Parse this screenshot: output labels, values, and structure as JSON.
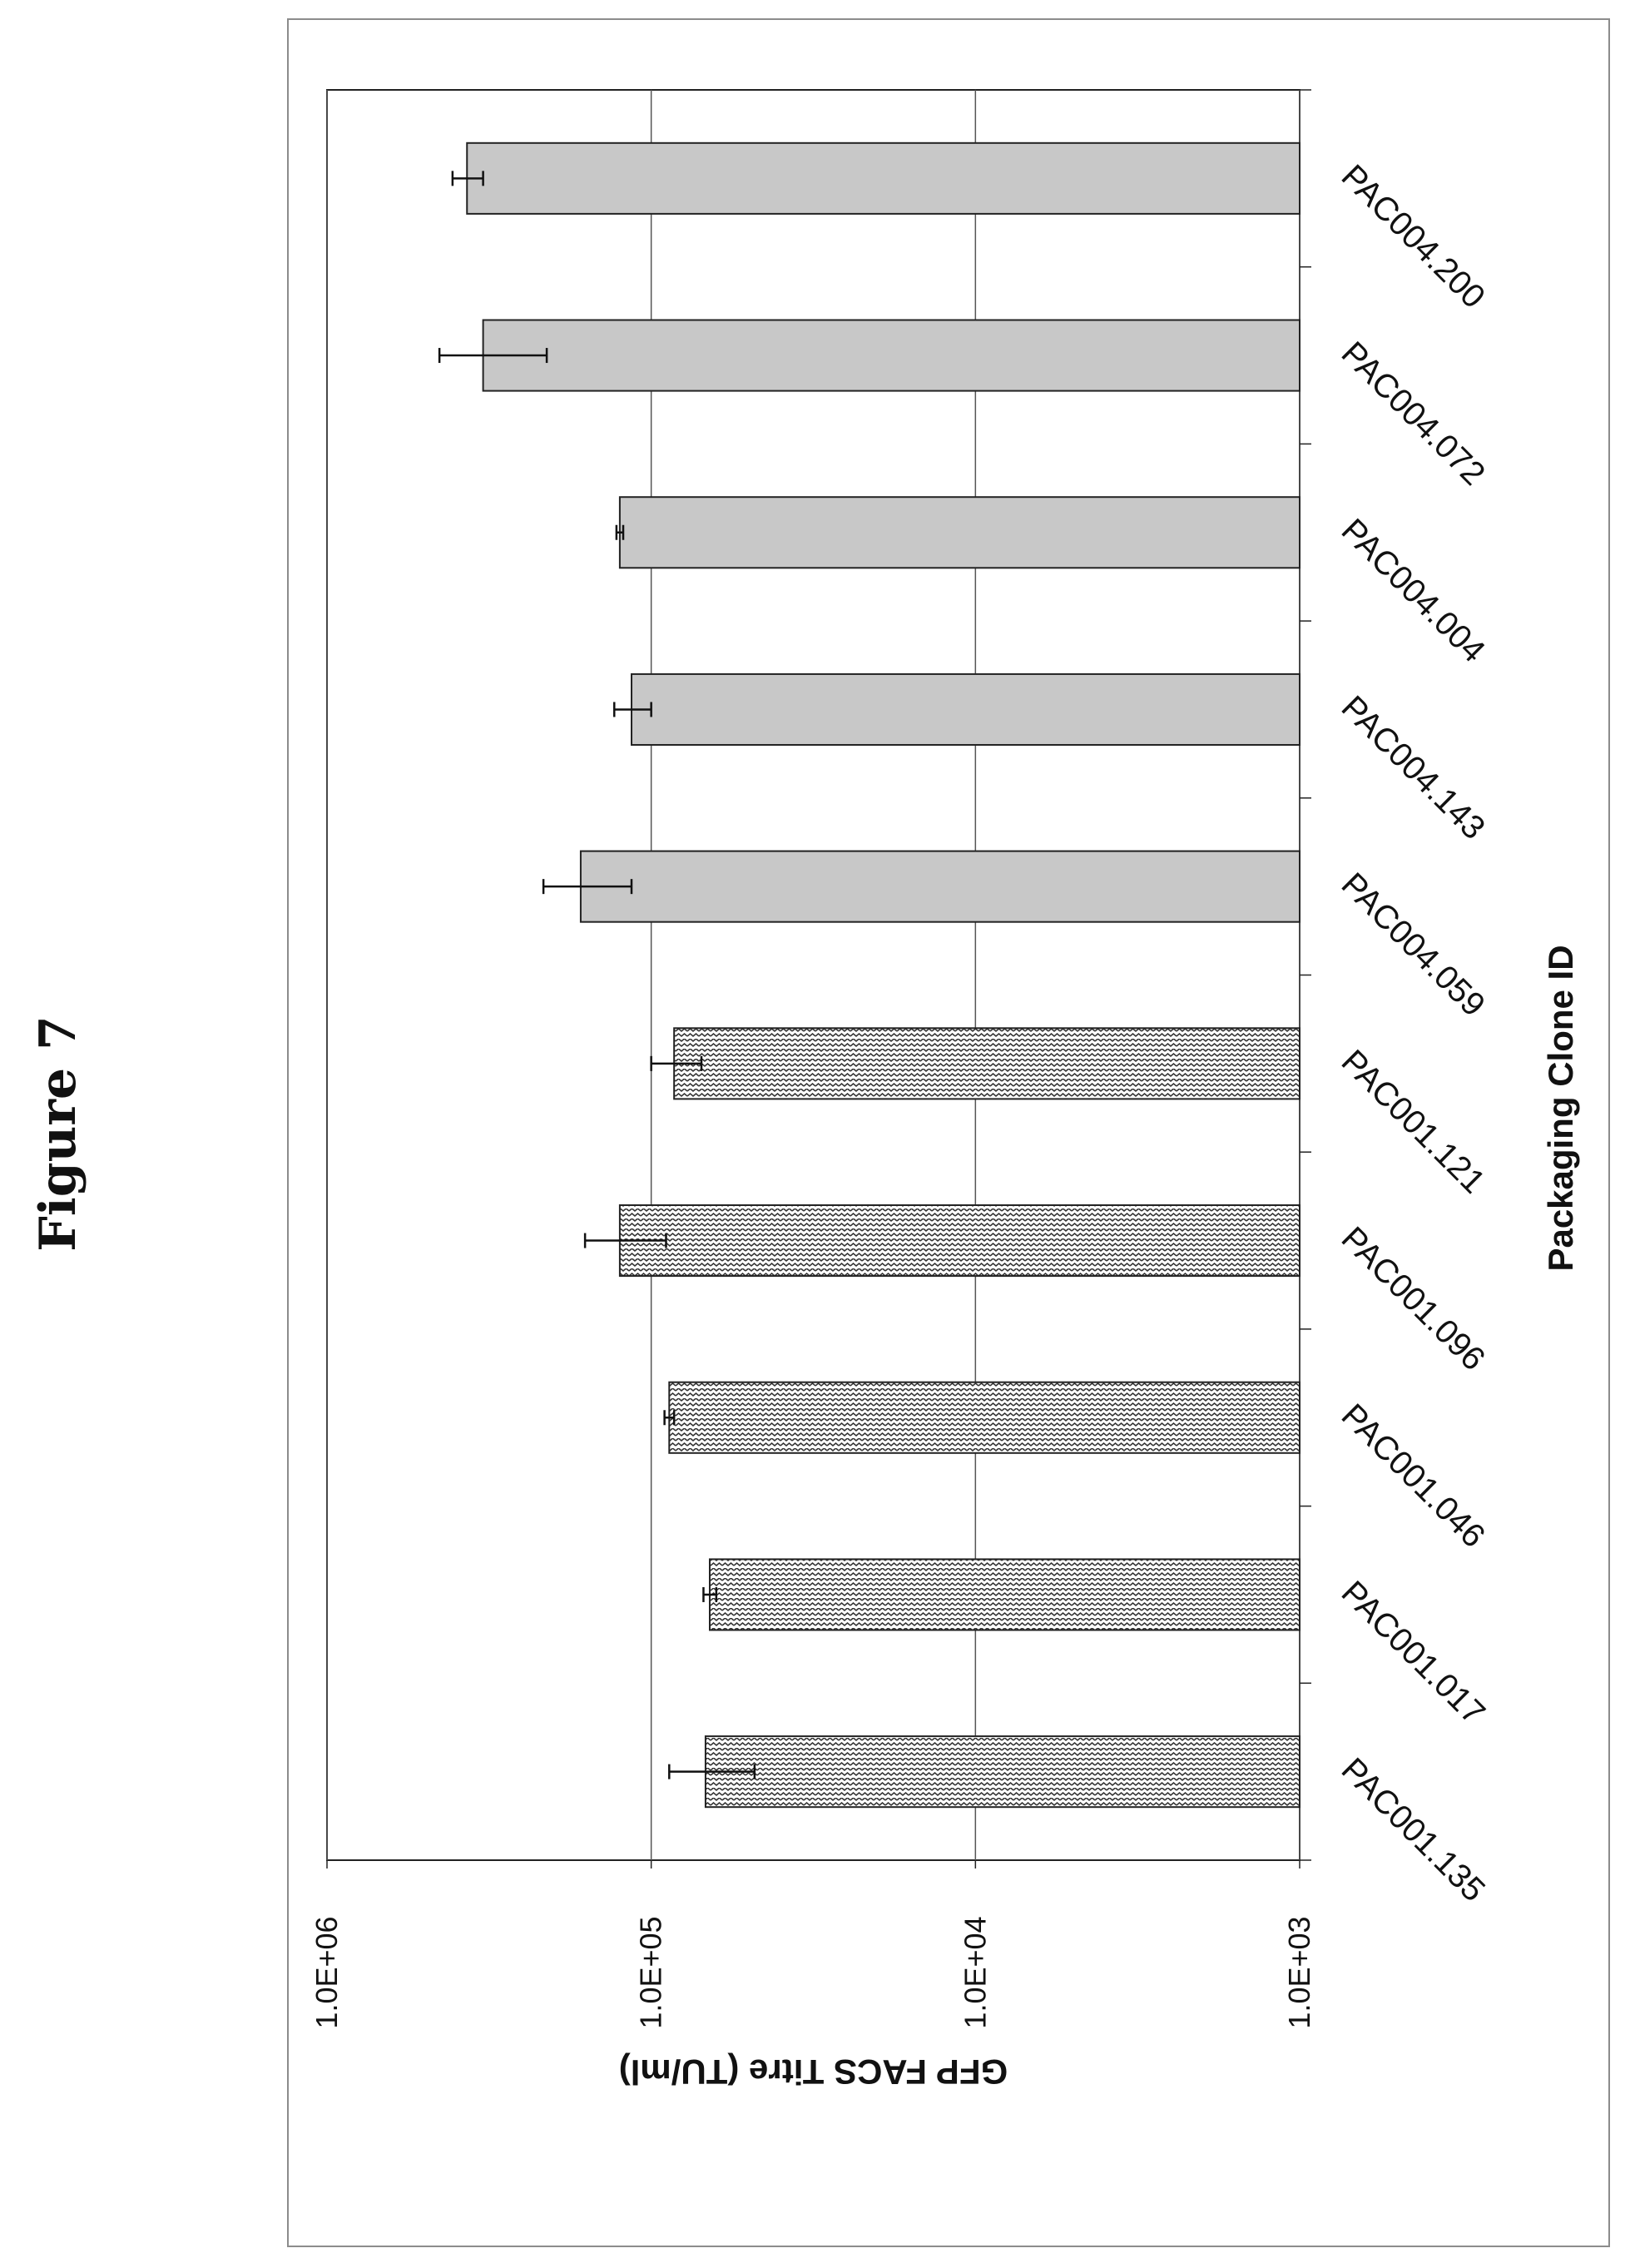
{
  "figure": {
    "title": "Figure 7"
  },
  "chart_data": {
    "type": "bar",
    "orientation": "horizontal",
    "xlabel": "Packaging Clone ID",
    "ylabel": "GFP FACS Titre (TU/ml)",
    "yscale": "log",
    "ylim": [
      1000,
      1000000
    ],
    "yticks": [
      1000,
      10000,
      100000,
      1000000
    ],
    "ytick_labels": [
      "1.0E+03",
      "1.0E+04",
      "1.0E+05",
      "1.0E+06"
    ],
    "grid": true,
    "categories": [
      "PAC001.135",
      "PAC001.017",
      "PAC001.046",
      "PAC001.096",
      "PAC001.121",
      "PAC004.059",
      "PAC004.143",
      "PAC004.004",
      "PAC004.072",
      "PAC004.200"
    ],
    "values": [
      68000,
      66000,
      88000,
      125000,
      85000,
      165000,
      115000,
      125000,
      330000,
      370000
    ],
    "error": [
      20000,
      3000,
      3000,
      35000,
      15000,
      50000,
      15000,
      3000,
      120000,
      40000
    ],
    "series_styles": [
      {
        "clones": [
          "PAC001.135",
          "PAC001.017",
          "PAC001.046",
          "PAC001.096",
          "PAC001.121"
        ],
        "fill": "zigzag-pattern",
        "color": "#ffffff",
        "stroke": "#222222"
      },
      {
        "clones": [
          "PAC004.059",
          "PAC004.143",
          "PAC004.004",
          "PAC004.072",
          "PAC004.200"
        ],
        "fill": "solid",
        "color": "#c8c8c8",
        "stroke": "#222222"
      }
    ]
  }
}
